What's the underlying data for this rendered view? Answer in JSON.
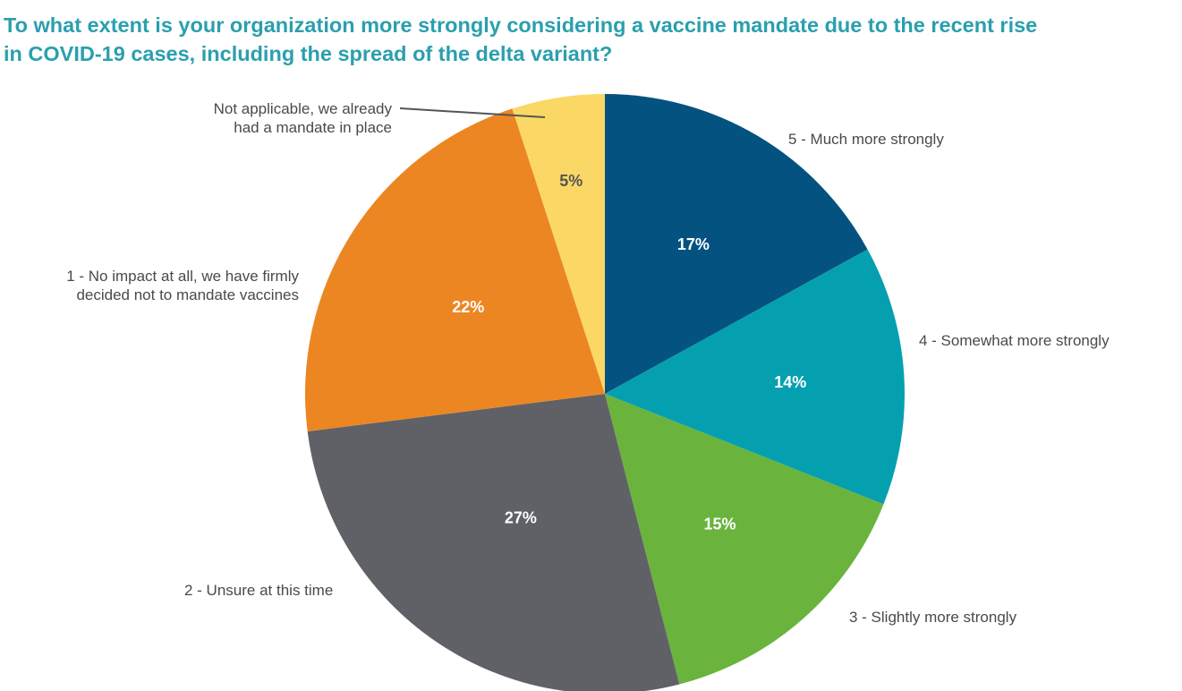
{
  "chart_data": {
    "type": "pie",
    "title": "To what extent is your organization more strongly considering a vaccine mandate due to the recent rise\nin COVID-19 cases, including the spread of the delta variant?",
    "start": "12 o'clock",
    "direction": "clockwise",
    "legend": "none (labels beside slices)",
    "slices": [
      {
        "label": "5 - Much more strongly",
        "value": 17,
        "value_label": "17%",
        "color": "#04527f",
        "label_color": "#ffffff"
      },
      {
        "label": "4 - Somewhat more strongly",
        "value": 14,
        "value_label": "14%",
        "color": "#05a0b0",
        "label_color": "#ffffff"
      },
      {
        "label": "3 - Slightly more strongly",
        "value": 15,
        "value_label": "15%",
        "color": "#6ab43d",
        "label_color": "#ffffff"
      },
      {
        "label": "2 - Unsure at this time",
        "value": 27,
        "value_label": "27%",
        "color": "#5f6167",
        "label_color": "#ffffff"
      },
      {
        "label": "1 - No impact at all, we have firmly\ndecided not to mandate vaccines",
        "value": 22,
        "value_label": "22%",
        "color": "#ec8622",
        "label_color": "#ffffff"
      },
      {
        "label": "Not applicable, we already\nhad a mandate in place",
        "value": 5,
        "value_label": "5%",
        "color": "#fbd865",
        "label_color": "#555555"
      }
    ]
  }
}
